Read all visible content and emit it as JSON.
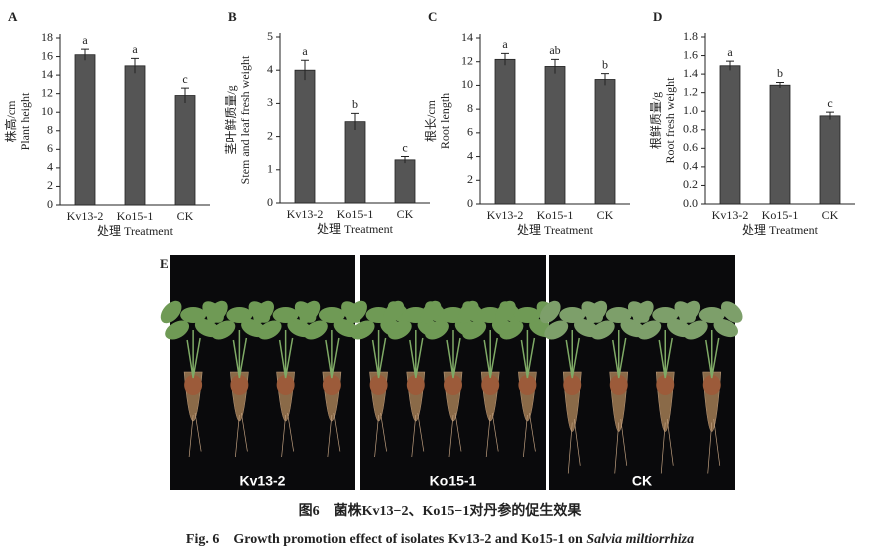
{
  "chart_data": [
    {
      "type": "bar",
      "panel": "A",
      "ylabel_cn": "株高/cm",
      "ylabel": "Plant height",
      "xlabel": "处理  Treatment",
      "categories": [
        "Kv13-2",
        "Ko15-1",
        "CK"
      ],
      "values": [
        16.2,
        15.0,
        11.8
      ],
      "errors": [
        0.6,
        0.8,
        0.8
      ],
      "letters": [
        "a",
        "a",
        "c"
      ],
      "color": "#555555",
      "ylim": [
        0,
        18
      ],
      "yticks": [
        0,
        2,
        4,
        6,
        8,
        10,
        12,
        14,
        16,
        18
      ]
    },
    {
      "type": "bar",
      "panel": "B",
      "ylabel_cn": "茎叶鲜质量/g",
      "ylabel": "Stem and leaf fresh weight",
      "xlabel": "处理  Treatment",
      "categories": [
        "Kv13-2",
        "Ko15-1",
        "CK"
      ],
      "values": [
        4.0,
        2.45,
        1.3
      ],
      "errors": [
        0.3,
        0.25,
        0.1
      ],
      "letters": [
        "a",
        "b",
        "c"
      ],
      "color": "#555555",
      "ylim": [
        0,
        5
      ],
      "yticks": [
        0,
        1,
        2,
        3,
        4,
        5
      ]
    },
    {
      "type": "bar",
      "panel": "C",
      "ylabel_cn": "根长/cm",
      "ylabel": "Root length",
      "xlabel": "处理  Treatment",
      "categories": [
        "Kv13-2",
        "Ko15-1",
        "CK"
      ],
      "values": [
        12.2,
        11.6,
        10.5
      ],
      "errors": [
        0.5,
        0.6,
        0.5
      ],
      "letters": [
        "a",
        "ab",
        "b"
      ],
      "color": "#555555",
      "ylim": [
        0,
        14
      ],
      "yticks": [
        0,
        2,
        4,
        6,
        8,
        10,
        12,
        14
      ]
    },
    {
      "type": "bar",
      "panel": "D",
      "ylabel_cn": "根鲜质量/g",
      "ylabel": "Root fresh weight",
      "xlabel": "处理  Treatment",
      "categories": [
        "Kv13-2",
        "Ko15-1",
        "CK"
      ],
      "values": [
        1.49,
        1.28,
        0.95
      ],
      "errors": [
        0.05,
        0.03,
        0.04
      ],
      "letters": [
        "a",
        "b",
        "c"
      ],
      "color": "#555555",
      "ylim": [
        0,
        1.8
      ],
      "yticks": [
        {
          "value": 0,
          "label": "0.0"
        },
        0.2,
        0.4,
        0.6,
        0.8,
        {
          "value": 1,
          "label": "1.0"
        },
        1.2,
        1.4,
        1.6,
        1.8
      ]
    }
  ],
  "photo": {
    "panel": "E",
    "labels": [
      "Kv13-2",
      "Ko15-1",
      "CK"
    ]
  },
  "caption": {
    "cn": "图6　菌株Kv13−2、Ko15−1对丹参的促生效果",
    "en": "Fig. 6　Growth promotion effect of isolates Kv13-2 and Ko15-1 on ",
    "species": "Salvia miltiorrhiza"
  }
}
